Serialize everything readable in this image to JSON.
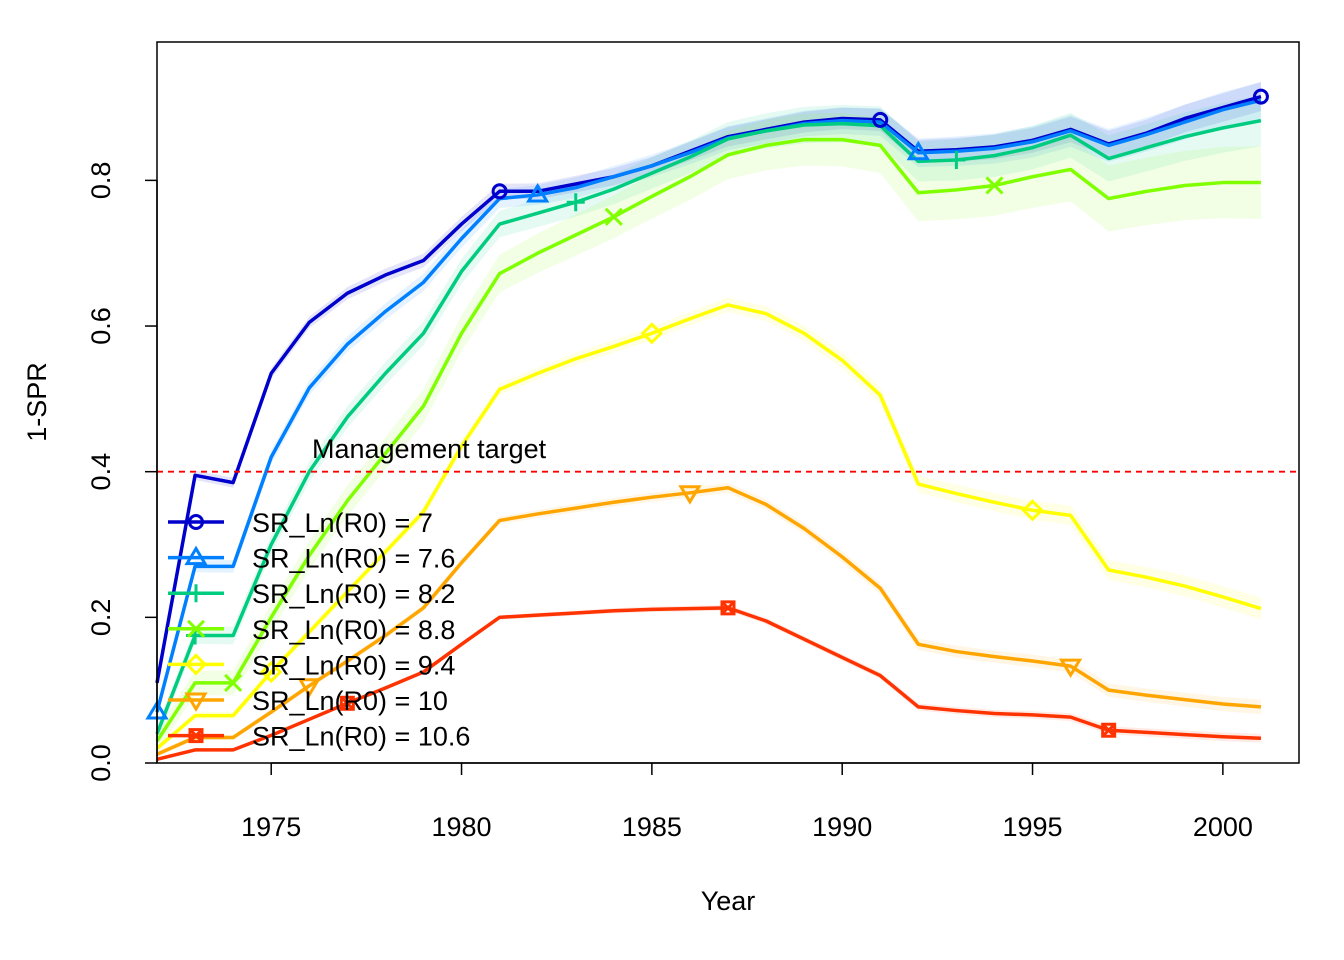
{
  "chart_data": {
    "type": "line",
    "xlabel": "Year",
    "ylabel": "1-SPR",
    "xlim": [
      1972,
      2002
    ],
    "ylim": [
      0,
      0.99
    ],
    "x_ticks": [
      1975,
      1980,
      1985,
      1990,
      1995,
      2000
    ],
    "y_ticks": [
      0.0,
      0.2,
      0.4,
      0.6,
      0.8
    ],
    "y_tick_labels": [
      "0.0",
      "0.2",
      "0.4",
      "0.6",
      "0.8"
    ],
    "grid": false,
    "legend_position": "bottom-left",
    "reference_line": {
      "y": 0.4,
      "label": "Management target",
      "color": "#ff0000"
    },
    "x": [
      1972,
      1973,
      1974,
      1975,
      1976,
      1977,
      1978,
      1979,
      1980,
      1981,
      1982,
      1983,
      1984,
      1985,
      1986,
      1987,
      1988,
      1989,
      1990,
      1991,
      1992,
      1993,
      1994,
      1995,
      1996,
      1997,
      1998,
      1999,
      2000,
      2001
    ],
    "series": [
      {
        "name": "SR_Ln(R0) =  7",
        "color": "#0000cc",
        "marker": "circle",
        "marker_years": [
          1981,
          1991,
          2001
        ],
        "band": 0.02,
        "values": [
          0.11,
          0.395,
          0.385,
          0.535,
          0.605,
          0.645,
          0.67,
          0.69,
          0.74,
          0.785,
          0.785,
          0.795,
          0.805,
          0.82,
          0.84,
          0.86,
          0.87,
          0.88,
          0.885,
          0.883,
          0.84,
          0.842,
          0.846,
          0.855,
          0.87,
          0.85,
          0.865,
          0.885,
          0.9,
          0.915
        ]
      },
      {
        "name": "SR_Ln(R0) =  7.6",
        "color": "#0080ff",
        "marker": "triangle",
        "marker_years": [
          1972,
          1982,
          1992
        ],
        "band": 0.025,
        "values": [
          0.07,
          0.27,
          0.27,
          0.42,
          0.515,
          0.575,
          0.62,
          0.66,
          0.72,
          0.775,
          0.78,
          0.79,
          0.805,
          0.82,
          0.838,
          0.858,
          0.868,
          0.878,
          0.882,
          0.88,
          0.838,
          0.84,
          0.844,
          0.853,
          0.868,
          0.848,
          0.863,
          0.88,
          0.897,
          0.91
        ]
      },
      {
        "name": "SR_Ln(R0) =  8.2",
        "color": "#00cc80",
        "marker": "plus",
        "marker_years": [
          1973,
          1983,
          1993
        ],
        "band": 0.035,
        "values": [
          0.04,
          0.175,
          0.175,
          0.3,
          0.4,
          0.475,
          0.535,
          0.59,
          0.675,
          0.74,
          0.755,
          0.77,
          0.788,
          0.81,
          0.832,
          0.857,
          0.868,
          0.876,
          0.878,
          0.875,
          0.826,
          0.828,
          0.834,
          0.845,
          0.862,
          0.83,
          0.845,
          0.86,
          0.872,
          0.882
        ]
      },
      {
        "name": "SR_Ln(R0) =  8.8",
        "color": "#80ff00",
        "marker": "x",
        "marker_years": [
          1974,
          1984,
          1994
        ],
        "band": 0.05,
        "values": [
          0.03,
          0.11,
          0.11,
          0.2,
          0.285,
          0.36,
          0.425,
          0.49,
          0.59,
          0.672,
          0.7,
          0.725,
          0.75,
          0.778,
          0.805,
          0.835,
          0.848,
          0.856,
          0.856,
          0.848,
          0.783,
          0.787,
          0.793,
          0.805,
          0.815,
          0.775,
          0.785,
          0.793,
          0.797,
          0.797
        ]
      },
      {
        "name": "SR_Ln(R0) =  9.4",
        "color": "#ffff00",
        "marker": "diamond",
        "marker_years": [
          1975,
          1985,
          1995
        ],
        "band": 0.015,
        "values": [
          0.02,
          0.065,
          0.065,
          0.125,
          0.18,
          0.235,
          0.29,
          0.345,
          0.435,
          0.513,
          0.535,
          0.555,
          0.572,
          0.59,
          0.61,
          0.629,
          0.617,
          0.59,
          0.553,
          0.505,
          0.383,
          0.37,
          0.358,
          0.347,
          0.34,
          0.265,
          0.255,
          0.243,
          0.228,
          0.212
        ]
      },
      {
        "name": "SR_Ln(R0) =  10",
        "color": "#ffa500",
        "marker": "triangle-down",
        "marker_years": [
          1976,
          1986,
          1996
        ],
        "band": 0.01,
        "values": [
          0.012,
          0.035,
          0.035,
          0.07,
          0.106,
          0.14,
          0.175,
          0.213,
          0.275,
          0.333,
          0.342,
          0.35,
          0.358,
          0.365,
          0.371,
          0.378,
          0.355,
          0.322,
          0.283,
          0.24,
          0.163,
          0.153,
          0.146,
          0.14,
          0.133,
          0.1,
          0.093,
          0.087,
          0.081,
          0.077
        ]
      },
      {
        "name": "SR_Ln(R0) =  10.6",
        "color": "#ff3300",
        "marker": "square-x",
        "marker_years": [
          1977,
          1987,
          1997
        ],
        "band": 0.006,
        "values": [
          0.005,
          0.018,
          0.018,
          0.038,
          0.06,
          0.082,
          0.103,
          0.125,
          0.163,
          0.2,
          0.203,
          0.206,
          0.209,
          0.211,
          0.212,
          0.213,
          0.195,
          0.17,
          0.145,
          0.12,
          0.077,
          0.072,
          0.068,
          0.066,
          0.063,
          0.045,
          0.042,
          0.039,
          0.036,
          0.034
        ]
      }
    ]
  }
}
